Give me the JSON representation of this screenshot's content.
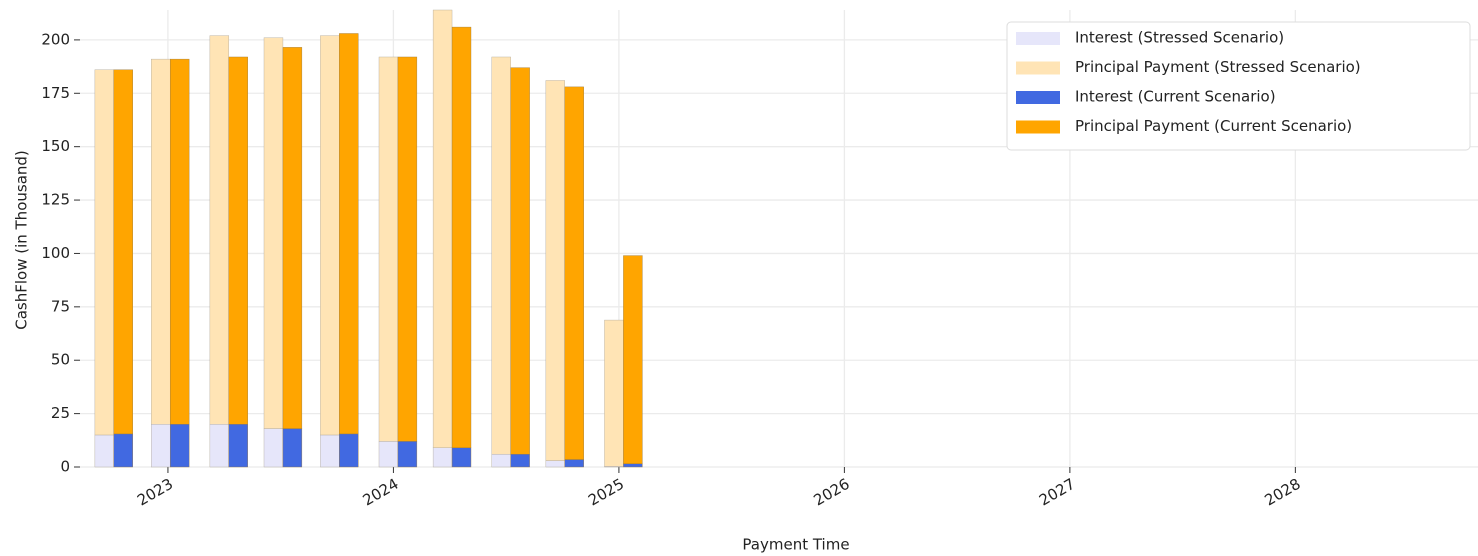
{
  "chart_data": {
    "type": "bar",
    "x_label": "Payment Time",
    "y_label": "CashFlow (in Thousand)",
    "x": [
      2022.76,
      2023.01,
      2023.27,
      2023.51,
      2023.76,
      2024.02,
      2024.26,
      2024.52,
      2024.76,
      2025.02
    ],
    "series": [
      {
        "name": "Interest (Stressed Scenario)",
        "color": "#e6e6fa",
        "values": [
          15,
          20,
          20,
          18,
          15,
          12,
          9,
          6,
          3,
          0.3
        ]
      },
      {
        "name": "Principal Payment (Stressed Scenario)",
        "color": "#ffe4b5",
        "values": [
          171,
          171,
          182,
          183,
          187,
          180,
          205,
          186,
          178,
          68.5
        ]
      },
      {
        "name": "Interest (Current Scenario)",
        "color": "#4169e1",
        "values": [
          15.5,
          20,
          20,
          18,
          15.5,
          12,
          9,
          6,
          3.5,
          1.5
        ]
      },
      {
        "name": "Principal Payment (Current Scenario)",
        "color": "#ffa500",
        "values": [
          170.5,
          171,
          172,
          178.5,
          187.5,
          180,
          197,
          181,
          174.5,
          97.5
        ]
      }
    ],
    "xlim": [
      2022.61,
      2028.81
    ],
    "xticks": [
      2023,
      2024,
      2025,
      2026,
      2027,
      2028
    ],
    "ylim": [
      0,
      214
    ],
    "yticks": [
      0,
      25,
      50,
      75,
      100,
      125,
      150,
      175,
      200
    ],
    "grid": true,
    "legend": "upper right"
  }
}
